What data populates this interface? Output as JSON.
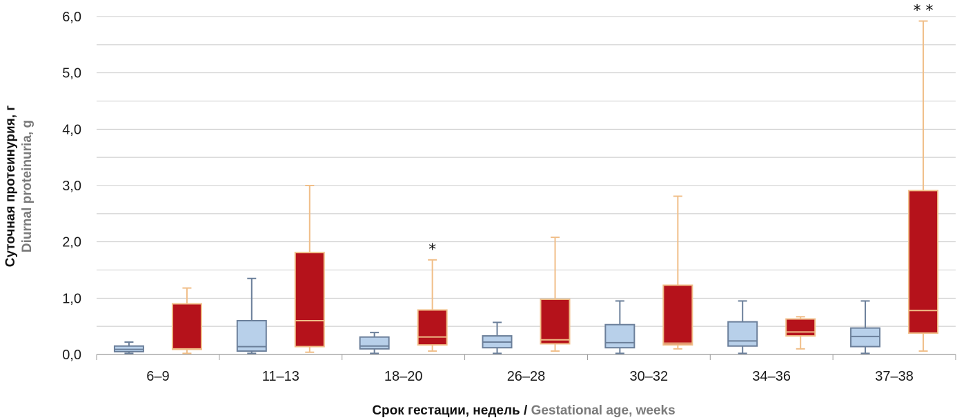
{
  "chart_data": {
    "type": "boxplot",
    "ylabel_ru": "Суточная протеинурия, г",
    "ylabel_en": "Diurnal proteinuria, g",
    "xlabel_ru": "Срок гестации, недель",
    "xlabel_sep": " / ",
    "xlabel_en": "Gestational age, weeks",
    "ylim": [
      0,
      6.0
    ],
    "yticks": [
      0,
      1,
      2,
      3,
      4,
      5,
      6
    ],
    "ytick_labels": [
      "0,0",
      "1,0",
      "2,0",
      "3,0",
      "4,0",
      "5,0",
      "6,0"
    ],
    "grid": true,
    "categories": [
      "6–9",
      "11–13",
      "18–20",
      "26–28",
      "30–32",
      "34–36",
      "37–38"
    ],
    "colors": {
      "blue_fill": "#b8d0ea",
      "blue_stroke": "#6b7f9a",
      "red_fill": "#b5121b",
      "red_stroke": "#f0be88",
      "grid": "#c8c8c8",
      "axis": "#999999"
    },
    "series": [
      {
        "boxes": [
          {
            "min": 0.02,
            "q1": 0.05,
            "median": 0.09,
            "q3": 0.15,
            "max": 0.22
          },
          {
            "min": 0.02,
            "q1": 0.06,
            "median": 0.14,
            "q3": 0.6,
            "max": 1.35
          },
          {
            "min": 0.02,
            "q1": 0.1,
            "median": 0.15,
            "q3": 0.31,
            "max": 0.39
          },
          {
            "min": 0.02,
            "q1": 0.12,
            "median": 0.22,
            "q3": 0.33,
            "max": 0.57
          },
          {
            "min": 0.02,
            "q1": 0.12,
            "median": 0.21,
            "q3": 0.53,
            "max": 0.95
          },
          {
            "min": 0.02,
            "q1": 0.15,
            "median": 0.24,
            "q3": 0.58,
            "max": 0.95
          },
          {
            "min": 0.02,
            "q1": 0.14,
            "median": 0.32,
            "q3": 0.47,
            "max": 0.95
          }
        ]
      },
      {
        "boxes": [
          {
            "min": 0.02,
            "q1": 0.09,
            "median": 0.1,
            "q3": 0.9,
            "max": 1.18
          },
          {
            "min": 0.04,
            "q1": 0.14,
            "median": 0.6,
            "q3": 1.81,
            "max": 3.0
          },
          {
            "min": 0.06,
            "q1": 0.17,
            "median": 0.31,
            "q3": 0.79,
            "max": 1.68
          },
          {
            "min": 0.06,
            "q1": 0.19,
            "median": 0.26,
            "q3": 0.98,
            "max": 2.08
          },
          {
            "min": 0.1,
            "q1": 0.17,
            "median": 0.2,
            "q3": 1.23,
            "max": 2.81
          },
          {
            "min": 0.1,
            "q1": 0.33,
            "median": 0.4,
            "q3": 0.63,
            "max": 0.67
          },
          {
            "min": 0.06,
            "q1": 0.38,
            "median": 0.78,
            "q3": 2.91,
            "max": 5.92
          }
        ]
      }
    ],
    "annotations": [
      {
        "category": "18–20",
        "text": "*"
      },
      {
        "category": "37–38",
        "text": "* *"
      }
    ]
  }
}
